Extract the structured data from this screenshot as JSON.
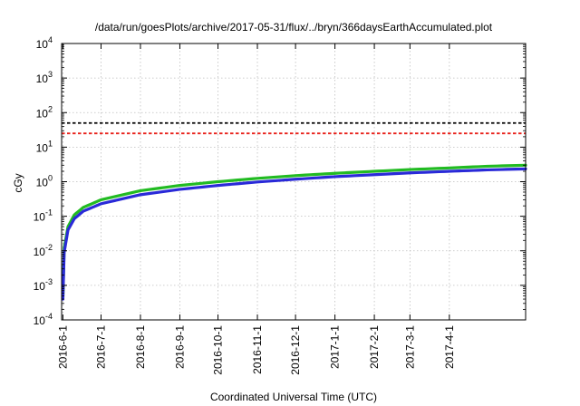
{
  "chart_data": {
    "type": "line",
    "title": "/data/run/goesPlots/archive/2017-05-31/flux/../bryn/366daysEarthAccumulated.plot",
    "xlabel": "Coordinated Universal Time (UTC)",
    "ylabel": "cGy",
    "y_scale": "log",
    "ylim": [
      0.0001,
      10000
    ],
    "xlim": [
      "2016-05-31",
      "2017-05-31"
    ],
    "grid": true,
    "x_ticks": [
      "2016-6-1",
      "2016-7-1",
      "2016-8-1",
      "2016-9-1",
      "2016-10-1",
      "2016-11-1",
      "2016-12-1",
      "2017-1-1",
      "2017-2-1",
      "2017-3-1",
      "2017-4-1"
    ],
    "y_ticks": [
      {
        "value": 0.0001,
        "base": "10",
        "exp": "-4"
      },
      {
        "value": 0.001,
        "base": "10",
        "exp": "-3"
      },
      {
        "value": 0.01,
        "base": "10",
        "exp": "-2"
      },
      {
        "value": 0.1,
        "base": "10",
        "exp": "-1"
      },
      {
        "value": 1,
        "base": "10",
        "exp": "0"
      },
      {
        "value": 10,
        "base": "10",
        "exp": "1"
      },
      {
        "value": 100,
        "base": "10",
        "exp": "2"
      },
      {
        "value": 1000,
        "base": "10",
        "exp": "3"
      },
      {
        "value": 10000,
        "base": "10",
        "exp": "4"
      }
    ],
    "reference_lines": [
      {
        "y": 50,
        "color": "#000000",
        "style": "dashed"
      },
      {
        "y": 25,
        "color": "#e8201a",
        "style": "dashed"
      }
    ],
    "series": [
      {
        "color": "#22bb22",
        "x": [
          "2016-06-01",
          "2016-06-02",
          "2016-06-05",
          "2016-06-10",
          "2016-06-17",
          "2016-07-01",
          "2016-08-01",
          "2016-09-01",
          "2016-10-01",
          "2016-11-01",
          "2016-12-01",
          "2017-01-01",
          "2017-02-01",
          "2017-03-01",
          "2017-04-01",
          "2017-05-01",
          "2017-05-31"
        ],
        "y": [
          0.00045,
          0.012,
          0.05,
          0.11,
          0.18,
          0.3,
          0.55,
          0.78,
          1.0,
          1.25,
          1.5,
          1.75,
          2.0,
          2.25,
          2.5,
          2.8,
          3.0
        ]
      },
      {
        "color": "#2a2ad8",
        "x": [
          "2016-06-01",
          "2016-06-02",
          "2016-06-05",
          "2016-06-10",
          "2016-06-17",
          "2016-07-01",
          "2016-08-01",
          "2016-09-01",
          "2016-10-01",
          "2016-11-01",
          "2016-12-01",
          "2017-01-01",
          "2017-02-01",
          "2017-03-01",
          "2017-04-01",
          "2017-05-01",
          "2017-05-31"
        ],
        "y": [
          0.0004,
          0.009,
          0.04,
          0.085,
          0.14,
          0.23,
          0.42,
          0.6,
          0.78,
          0.98,
          1.18,
          1.4,
          1.6,
          1.8,
          2.0,
          2.2,
          2.35
        ]
      }
    ]
  }
}
